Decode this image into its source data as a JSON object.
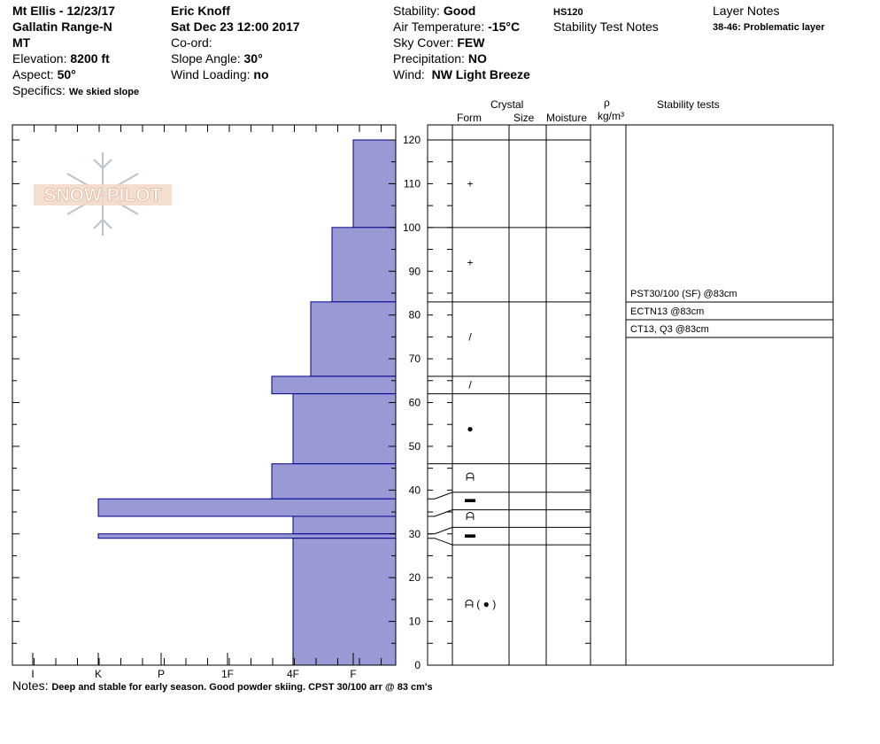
{
  "header": {
    "location": "Mt Ellis - 12/23/17",
    "range": "Gallatin Range-N",
    "state": "MT",
    "elevation_label": "Elevation:",
    "elevation": "8200 ft",
    "aspect_label": "Aspect:",
    "aspect": "50°",
    "specifics_label": "Specifics:",
    "specifics": "We skied slope",
    "observer": "Eric Knoff",
    "datetime": "Sat Dec 23 12:00 2017",
    "coord_label": "Co-ord:",
    "slope_label": "Slope Angle:",
    "slope": "30°",
    "wind_loading_label": "Wind Loading:",
    "wind_loading": "no",
    "stability_label": "Stability:",
    "stability": "Good",
    "air_temp_label": "Air Temperature:",
    "air_temp": "-15°C",
    "sky_label": "Sky Cover:",
    "sky": "FEW",
    "precip_label": "Precipitation:",
    "precip": "NO",
    "wind_label": "Wind:",
    "wind": "NW Light Breeze",
    "hs": "HS120",
    "stability_test_notes_label": "Stability Test Notes",
    "layer_notes_label": "Layer Notes",
    "layer_note": "38-46: Problematic layer"
  },
  "logo_text": "SNOW PILOT",
  "columns": {
    "crystal": "Crystal",
    "form": "Form",
    "size": "Size",
    "moisture": "Moisture",
    "rho": "ρ",
    "density_unit": "kg/m³",
    "stability_tests": "Stability tests"
  },
  "notes_label": "Notes:",
  "notes": "Deep and stable for early season. Good powder skiing.  CPST 30/100 arr @ 83 cm's",
  "colors": {
    "hardness_fill": "#9999d6",
    "hardness_stroke": "#00008b"
  },
  "chart_data": {
    "type": "bar",
    "ylim": [
      0,
      120
    ],
    "yticks": [
      0,
      10,
      20,
      30,
      40,
      50,
      60,
      70,
      80,
      90,
      100,
      110,
      120
    ],
    "hardness_scale": [
      "I",
      "K",
      "P",
      "1F",
      "4F",
      "F"
    ],
    "layers": [
      {
        "bottom": 100,
        "top": 120,
        "hardness": "F"
      },
      {
        "bottom": 83,
        "top": 100,
        "hardness": "F+"
      },
      {
        "bottom": 66,
        "top": 83,
        "hardness": "4F-"
      },
      {
        "bottom": 62,
        "top": 66,
        "hardness": "4F+"
      },
      {
        "bottom": 46,
        "top": 62,
        "hardness": "4F"
      },
      {
        "bottom": 38,
        "top": 46,
        "hardness": "4F+"
      },
      {
        "bottom": 34,
        "top": 38,
        "hardness": "K"
      },
      {
        "bottom": 30,
        "top": 34,
        "hardness": "4F"
      },
      {
        "bottom": 29,
        "top": 30,
        "hardness": "K"
      },
      {
        "bottom": 0,
        "top": 29,
        "hardness": "4F"
      }
    ],
    "grain_forms": [
      {
        "depth": 110,
        "symbol": "+"
      },
      {
        "depth": 92,
        "symbol": "+"
      },
      {
        "depth": 75,
        "symbol": "/"
      },
      {
        "depth": 64,
        "symbol": "/"
      },
      {
        "depth": 54,
        "symbol": "●"
      },
      {
        "depth": 43,
        "symbol": "ᗩ"
      },
      {
        "depth": 38,
        "symbol": "▬"
      },
      {
        "depth": 34,
        "symbol": "ᗩ"
      },
      {
        "depth": 30,
        "symbol": "▬"
      },
      {
        "depth": 14,
        "symbol": "ᗩ ( ● )"
      }
    ],
    "stability_tests": [
      {
        "depth": 83,
        "label": "PST30/100 (SF) @83cm"
      },
      {
        "depth": 83,
        "label": "ECTN13 @83cm"
      },
      {
        "depth": 83,
        "label": "CT13, Q3 @83cm"
      }
    ]
  }
}
